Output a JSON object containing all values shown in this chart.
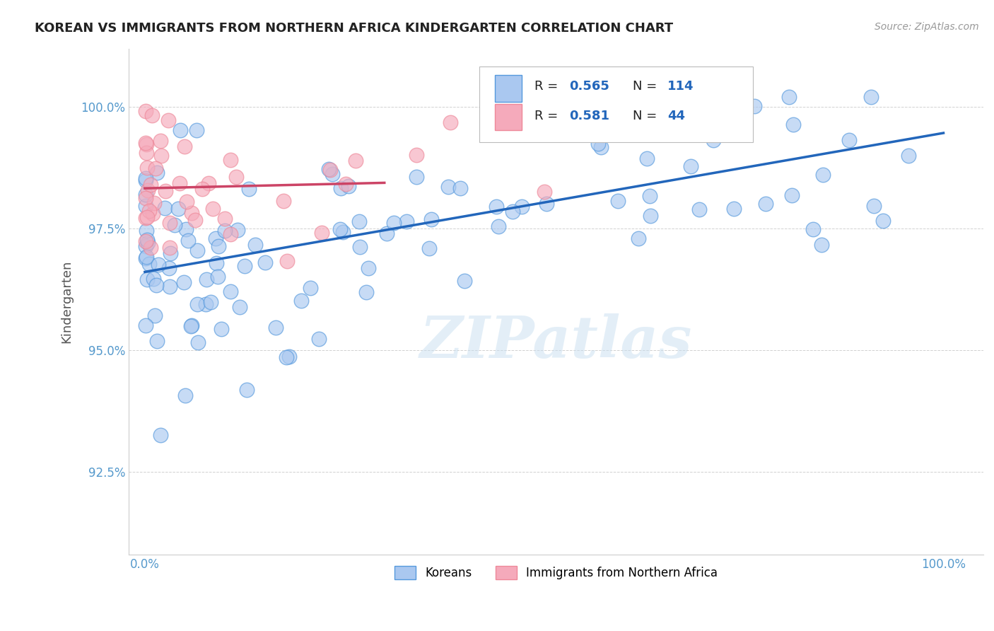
{
  "title": "KOREAN VS IMMIGRANTS FROM NORTHERN AFRICA KINDERGARTEN CORRELATION CHART",
  "source_text": "Source: ZipAtlas.com",
  "ylabel": "Kindergarten",
  "xlim": [
    -0.02,
    1.05
  ],
  "ylim": [
    0.908,
    1.012
  ],
  "yticks": [
    0.925,
    0.95,
    0.975,
    1.0
  ],
  "ytick_labels": [
    "92.5%",
    "95.0%",
    "97.5%",
    "100.0%"
  ],
  "xtick_positions": [
    0.0,
    1.0
  ],
  "xtick_labels": [
    "0.0%",
    "100.0%"
  ],
  "legend_blue_R": "0.565",
  "legend_blue_N": "114",
  "legend_pink_R": "0.581",
  "legend_pink_N": "44",
  "legend_blue_label": "Koreans",
  "legend_pink_label": "Immigrants from Northern Africa",
  "watermark": "ZIPatlas",
  "blue_color": "#aac8f0",
  "blue_edge_color": "#5599dd",
  "blue_line_color": "#2266bb",
  "pink_color": "#f5aabb",
  "pink_edge_color": "#ee8899",
  "pink_line_color": "#cc4466",
  "legend_text_color": "#2266bb",
  "background_color": "#ffffff",
  "grid_color": "#cccccc",
  "title_color": "#222222",
  "axis_tick_color": "#5599cc",
  "axis_label_color": "#555555"
}
